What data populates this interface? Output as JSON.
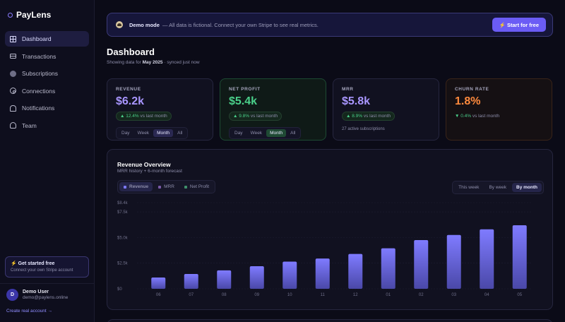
{
  "app": {
    "name": "PayLens"
  },
  "sidebar": {
    "items": [
      {
        "label": "Dashboard",
        "icon": "grid-icon",
        "active": true
      },
      {
        "label": "Transactions",
        "icon": "card-icon"
      },
      {
        "label": "Subscriptions",
        "icon": "circle-icon"
      },
      {
        "label": "Connections",
        "icon": "link-icon"
      },
      {
        "label": "Notifications",
        "icon": "bell-icon"
      },
      {
        "label": "Team",
        "icon": "users-icon"
      }
    ],
    "promo": {
      "title": "⚡ Get started free",
      "subtitle": "Connect your own Stripe account"
    },
    "user": {
      "initial": "D",
      "name": "Demo User",
      "email": "demo@paylens.online"
    },
    "create_account": "Create real account →"
  },
  "banner": {
    "title": "Demo mode",
    "text": "— All data is fictional. Connect your own Stripe to see real metrics.",
    "cta": "⚡ Start for free"
  },
  "header": {
    "title": "Dashboard",
    "subtitle_prefix": "Showing data for",
    "period": "May 2025",
    "subtitle_suffix": "· synced just now"
  },
  "kpis": [
    {
      "label": "REVENUE",
      "value": "$6.2k",
      "delta": "▲ 12.4%",
      "vs": "vs last month",
      "color": "#a996ff",
      "period_options": [
        "Day",
        "Week",
        "Month",
        "All"
      ],
      "period_selected": "Month"
    },
    {
      "label": "NET PROFIT",
      "value": "$5.4k",
      "delta": "▲ 9.8%",
      "vs": "vs last month",
      "color": "#4ad08a",
      "period_options": [
        "Day",
        "Week",
        "Month",
        "All"
      ],
      "period_selected": "Month"
    },
    {
      "label": "MRR",
      "value": "$5.8k",
      "delta": "▲ 8.9%",
      "vs": "vs last month",
      "color": "#a996ff",
      "note": "27 active subscriptions"
    },
    {
      "label": "CHURN RATE",
      "value": "1.8%",
      "delta": "▼ 0.4%",
      "vs": "vs last month",
      "color": "#ff8a3d"
    }
  ],
  "chart": {
    "title": "Revenue Overview",
    "subtitle": "MRR history + 6-month forecast",
    "series_toggles": [
      {
        "label": "Revenue",
        "color": "#7c79ff",
        "active": true
      },
      {
        "label": "MRR",
        "color": "#7a5aa8",
        "active": false
      },
      {
        "label": "Net Profit",
        "color": "#3f8f6a",
        "active": false
      }
    ],
    "range_options": [
      "This week",
      "By week",
      "By month"
    ],
    "range_selected": "By month"
  },
  "chart_data": {
    "type": "bar",
    "categories": [
      "06",
      "07",
      "08",
      "09",
      "10",
      "11",
      "12",
      "01",
      "02",
      "03",
      "04",
      "05"
    ],
    "series": [
      {
        "name": "Revenue",
        "values": [
          1100,
          1450,
          1800,
          2200,
          2650,
          2950,
          3400,
          3950,
          4750,
          5250,
          5800,
          6200
        ]
      }
    ],
    "ytick_labels": [
      "$0",
      "$2.5k",
      "$5.0k",
      "$7.5k",
      "$8.4k"
    ],
    "ytick_values": [
      0,
      2500,
      5000,
      7500,
      8400
    ],
    "ylim": [
      0,
      8400
    ],
    "grid": true
  }
}
